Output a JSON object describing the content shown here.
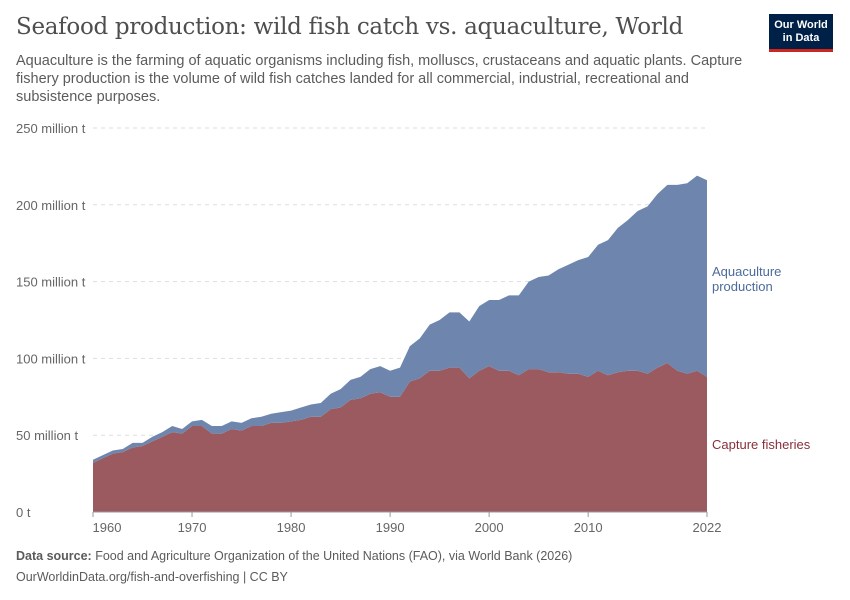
{
  "header": {
    "title": "Seafood production: wild fish catch vs. aquaculture, World",
    "subtitle": "Aquaculture is the farming of aquatic organisms including fish, molluscs, crustaceans and aquatic plants. Capture fishery production is the volume of wild fish catches landed for all commercial, industrial, recreational and subsistence purposes.",
    "logo": "Our World in Data"
  },
  "footer": {
    "source_label": "Data source:",
    "source": "Food and Agriculture Organization of the United Nations (FAO), via World Bank (2026)",
    "url": "OurWorldinData.org/fish-and-overfishing | CC BY"
  },
  "chart_data": {
    "type": "area",
    "stacked": true,
    "xlim": [
      1960,
      2022
    ],
    "ylim": [
      0,
      250
    ],
    "x_ticks": [
      "1960",
      "1970",
      "1980",
      "1990",
      "2000",
      "2010",
      "2022"
    ],
    "y_ticks": [
      "0 t",
      "50 million t",
      "100 million t",
      "150 million t",
      "200 million t",
      "250 million t"
    ],
    "y_tick_values": [
      0,
      50,
      100,
      150,
      200,
      250
    ],
    "grid": "horizontal dashed",
    "legend": "right, inline labels",
    "x": [
      1960,
      1961,
      1962,
      1963,
      1964,
      1965,
      1966,
      1967,
      1968,
      1969,
      1970,
      1971,
      1972,
      1973,
      1974,
      1975,
      1976,
      1977,
      1978,
      1979,
      1980,
      1981,
      1982,
      1983,
      1984,
      1985,
      1986,
      1987,
      1988,
      1989,
      1990,
      1991,
      1992,
      1993,
      1994,
      1995,
      1996,
      1997,
      1998,
      1999,
      2000,
      2001,
      2002,
      2003,
      2004,
      2005,
      2006,
      2007,
      2008,
      2009,
      2010,
      2011,
      2012,
      2013,
      2014,
      2015,
      2016,
      2017,
      2018,
      2019,
      2020,
      2021,
      2022
    ],
    "series": [
      {
        "name": "Capture fisheries",
        "color": "#9a5a5f",
        "values": [
          32,
          35,
          38,
          39,
          42,
          43,
          46,
          49,
          52,
          51,
          56,
          56,
          51,
          51,
          54,
          53,
          56,
          56,
          58,
          58,
          59,
          60,
          62,
          62,
          67,
          68,
          73,
          74,
          77,
          78,
          75,
          75,
          85,
          87,
          92,
          92,
          94,
          94,
          87,
          92,
          95,
          92,
          92,
          89,
          93,
          93,
          91,
          91,
          90,
          90,
          88,
          92,
          89,
          91,
          92,
          92,
          90,
          94,
          97,
          92,
          90,
          92,
          88
        ]
      },
      {
        "name": "Aquaculture production",
        "color": "#6e86ad",
        "values": [
          2,
          2,
          2,
          2,
          3,
          2,
          3,
          3,
          4,
          3,
          3,
          4,
          5,
          5,
          5,
          5,
          5,
          6,
          6,
          7,
          7,
          8,
          8,
          9,
          10,
          12,
          13,
          14,
          16,
          17,
          17,
          19,
          23,
          26,
          30,
          33,
          36,
          36,
          37,
          42,
          43,
          46,
          49,
          52,
          57,
          60,
          63,
          67,
          71,
          74,
          78,
          82,
          88,
          94,
          98,
          104,
          109,
          113,
          116,
          121,
          124,
          127,
          128
        ]
      }
    ]
  }
}
